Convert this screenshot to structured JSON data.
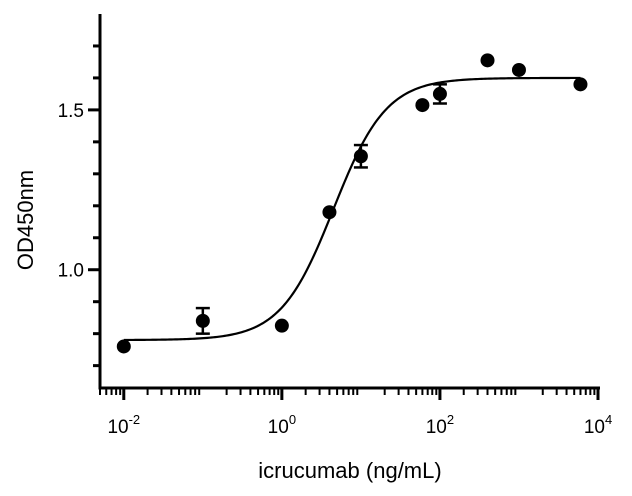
{
  "chart_data": {
    "type": "scatter",
    "title": "",
    "xlabel": "icrucumab (ng/mL)",
    "ylabel": "OD450nm",
    "x_scale": "log",
    "xlim": [
      0.005,
      10000
    ],
    "ylim": [
      0.63,
      1.8
    ],
    "x_ticks": [
      {
        "value": 0.01,
        "base": "10",
        "exp": "-2"
      },
      {
        "value": 1,
        "base": "10",
        "exp": "0"
      },
      {
        "value": 100,
        "base": "10",
        "exp": "2"
      },
      {
        "value": 10000,
        "base": "10",
        "exp": "4"
      }
    ],
    "y_ticks": [
      {
        "value": 1.0,
        "label": "1.0"
      },
      {
        "value": 1.5,
        "label": "1.5"
      }
    ],
    "y_minor_ticks": [
      0.7,
      0.8,
      0.9,
      1.1,
      1.2,
      1.3,
      1.4,
      1.6,
      1.7
    ],
    "grid": false,
    "legend": "none",
    "color": "#000000",
    "points": [
      {
        "x": 0.01,
        "y": 0.76,
        "err": 0.01
      },
      {
        "x": 0.1,
        "y": 0.84,
        "err": 0.04
      },
      {
        "x": 1,
        "y": 0.825,
        "err": 0.01
      },
      {
        "x": 4,
        "y": 1.18,
        "err": 0.01
      },
      {
        "x": 10,
        "y": 1.355,
        "err": 0.035
      },
      {
        "x": 60,
        "y": 1.515,
        "err": 0.01
      },
      {
        "x": 100,
        "y": 1.55,
        "err": 0.03
      },
      {
        "x": 400,
        "y": 1.655,
        "err": 0.01
      },
      {
        "x": 1000,
        "y": 1.625,
        "err": 0.01
      },
      {
        "x": 6000,
        "y": 1.58,
        "err": 0.01
      }
    ],
    "fit": {
      "model": "four-parameter logistic",
      "bottom": 0.78,
      "top": 1.6,
      "ec50": 4.5,
      "hill": 1.3
    }
  }
}
